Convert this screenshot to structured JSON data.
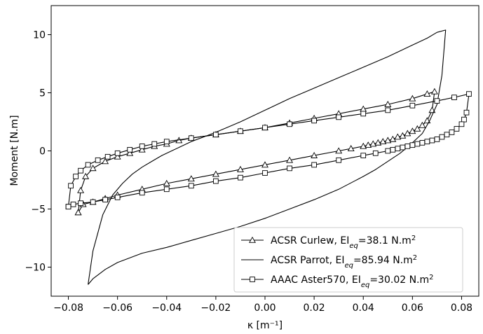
{
  "chart_data": {
    "type": "line",
    "xlabel": "κ [m⁻¹]",
    "ylabel": "Moment [N.m]",
    "xlim": [
      -0.087,
      0.087
    ],
    "ylim": [
      -12.5,
      12.5
    ],
    "xticks": [
      -0.08,
      -0.06,
      -0.04,
      -0.02,
      0.0,
      0.02,
      0.04,
      0.06,
      0.08
    ],
    "xtick_labels": [
      "−0.08",
      "−0.06",
      "−0.04",
      "−0.02",
      "0.00",
      "0.02",
      "0.04",
      "0.06",
      "0.08"
    ],
    "yticks": [
      -10,
      -5,
      0,
      5,
      10
    ],
    "ytick_labels": [
      "−10",
      "−5",
      "0",
      "5",
      "10"
    ],
    "grid": false,
    "legend_position": "lower-right",
    "series": [
      {
        "name": "ACSR Curlew",
        "legend": {
          "prefix": "ACSR Curlew, EI",
          "sub": "eq",
          "suffix": "=38.1 N.m",
          "sup": "2"
        },
        "marker": "triangle",
        "x": [
          -0.076,
          -0.075,
          -0.073,
          -0.07,
          -0.065,
          -0.06,
          -0.055,
          -0.05,
          -0.045,
          -0.04,
          -0.035,
          -0.03,
          -0.02,
          -0.01,
          0.0,
          0.01,
          0.02,
          0.03,
          0.04,
          0.05,
          0.06,
          0.066,
          0.069,
          0.068,
          0.066,
          0.064,
          0.062,
          0.06,
          0.058,
          0.056,
          0.054,
          0.052,
          0.05,
          0.048,
          0.046,
          0.044,
          0.042,
          0.04,
          0.035,
          0.03,
          0.02,
          0.01,
          0.0,
          -0.01,
          -0.02,
          -0.03,
          -0.04,
          -0.05,
          -0.06,
          -0.065,
          -0.07,
          -0.074,
          -0.076
        ],
        "y": [
          -5.3,
          -3.4,
          -2.2,
          -1.5,
          -0.9,
          -0.5,
          -0.2,
          0.1,
          0.4,
          0.6,
          0.9,
          1.1,
          1.4,
          1.7,
          2.0,
          2.4,
          2.8,
          3.2,
          3.6,
          4.0,
          4.5,
          4.9,
          5.1,
          3.5,
          2.6,
          2.2,
          1.9,
          1.7,
          1.5,
          1.3,
          1.2,
          1.0,
          0.9,
          0.8,
          0.7,
          0.6,
          0.5,
          0.4,
          0.2,
          0.0,
          -0.4,
          -0.8,
          -1.2,
          -1.6,
          -2.0,
          -2.4,
          -2.8,
          -3.3,
          -3.8,
          -4.1,
          -4.4,
          -4.6,
          -5.3
        ]
      },
      {
        "name": "ACSR Parrot",
        "legend": {
          "prefix": "ACSR Parrot, EI",
          "sub": "eq",
          "suffix": "=85.94 N.m",
          "sup": "2"
        },
        "marker": "none",
        "x": [
          -0.072,
          -0.07,
          -0.066,
          -0.062,
          -0.058,
          -0.054,
          -0.05,
          -0.046,
          -0.042,
          -0.038,
          -0.034,
          -0.03,
          -0.025,
          -0.02,
          -0.01,
          0.0,
          0.01,
          0.02,
          0.03,
          0.04,
          0.05,
          0.06,
          0.066,
          0.07,
          0.0735,
          0.072,
          0.07,
          0.067,
          0.064,
          0.06,
          0.055,
          0.05,
          0.045,
          0.04,
          0.03,
          0.02,
          0.01,
          0.0,
          -0.01,
          -0.02,
          -0.03,
          -0.04,
          -0.05,
          -0.06,
          -0.065,
          -0.07,
          -0.072
        ],
        "y": [
          -11.5,
          -8.6,
          -5.5,
          -3.8,
          -2.8,
          -2.0,
          -1.4,
          -0.9,
          -0.4,
          0.0,
          0.4,
          0.8,
          1.2,
          1.6,
          2.5,
          3.5,
          4.5,
          5.4,
          6.3,
          7.2,
          8.1,
          9.1,
          9.7,
          10.2,
          10.4,
          6.5,
          4.0,
          2.6,
          1.5,
          0.7,
          -0.2,
          -0.9,
          -1.6,
          -2.2,
          -3.3,
          -4.2,
          -5.0,
          -5.8,
          -6.5,
          -7.1,
          -7.7,
          -8.3,
          -8.8,
          -9.6,
          -10.2,
          -11.0,
          -11.5
        ]
      },
      {
        "name": "AAAC Aster570",
        "legend": {
          "prefix": "AAAC Aster570, EI",
          "sub": "eq",
          "suffix": "=30.02 N.m",
          "sup": "2"
        },
        "marker": "square",
        "x": [
          -0.08,
          -0.079,
          -0.077,
          -0.075,
          -0.072,
          -0.068,
          -0.064,
          -0.06,
          -0.055,
          -0.05,
          -0.045,
          -0.04,
          -0.03,
          -0.02,
          -0.01,
          0.0,
          0.01,
          0.02,
          0.03,
          0.04,
          0.05,
          0.06,
          0.07,
          0.077,
          0.083,
          0.082,
          0.081,
          0.08,
          0.078,
          0.076,
          0.074,
          0.072,
          0.07,
          0.068,
          0.066,
          0.064,
          0.062,
          0.06,
          0.058,
          0.056,
          0.054,
          0.052,
          0.05,
          0.045,
          0.04,
          0.03,
          0.02,
          0.01,
          0.0,
          -0.01,
          -0.02,
          -0.03,
          -0.04,
          -0.05,
          -0.06,
          -0.065,
          -0.07,
          -0.075,
          -0.078,
          -0.08
        ],
        "y": [
          -4.8,
          -3.0,
          -2.2,
          -1.7,
          -1.2,
          -0.8,
          -0.5,
          -0.2,
          0.1,
          0.4,
          0.6,
          0.8,
          1.1,
          1.4,
          1.7,
          2.0,
          2.3,
          2.6,
          2.9,
          3.2,
          3.5,
          3.9,
          4.3,
          4.6,
          4.9,
          3.3,
          2.7,
          2.3,
          1.9,
          1.6,
          1.4,
          1.2,
          1.0,
          0.9,
          0.8,
          0.7,
          0.6,
          0.5,
          0.4,
          0.3,
          0.2,
          0.1,
          0.0,
          -0.2,
          -0.4,
          -0.8,
          -1.2,
          -1.5,
          -1.9,
          -2.3,
          -2.6,
          -3.0,
          -3.3,
          -3.6,
          -4.0,
          -4.2,
          -4.4,
          -4.5,
          -4.6,
          -4.8
        ]
      }
    ]
  }
}
